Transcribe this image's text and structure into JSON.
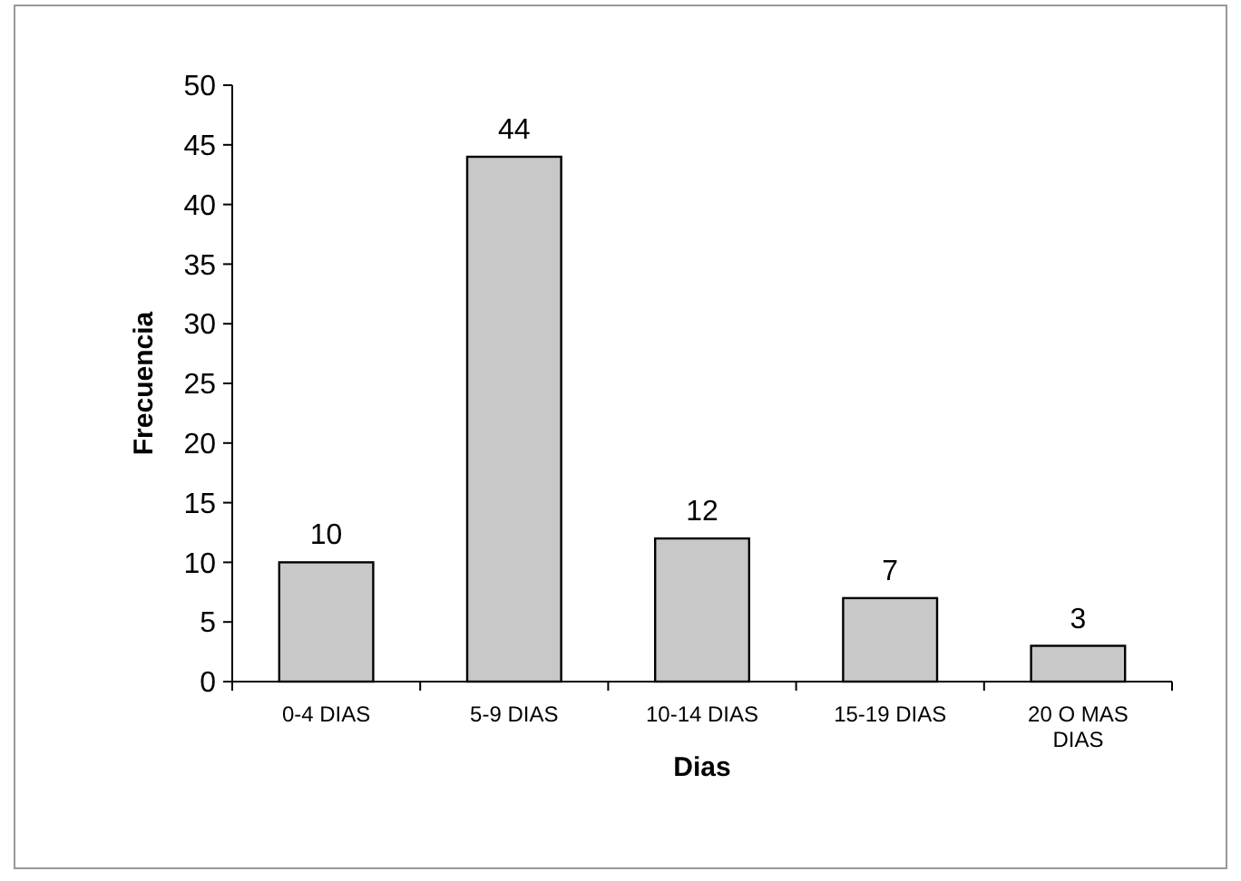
{
  "chart_data": {
    "type": "bar",
    "xlabel": "Dias",
    "ylabel": "Frecuencia",
    "categories": [
      "0-4 DIAS",
      "5-9 DIAS",
      "10-14 DIAS",
      "15-19 DIAS",
      "20 O MAS DIAS"
    ],
    "values": [
      10,
      44,
      12,
      7,
      3
    ],
    "color": "#c8c8c8",
    "ylim": [
      0,
      50
    ],
    "yticks": [
      0,
      5,
      10,
      15,
      20,
      25,
      30,
      35,
      40,
      45,
      50
    ],
    "grid": false,
    "data_labels": true
  }
}
